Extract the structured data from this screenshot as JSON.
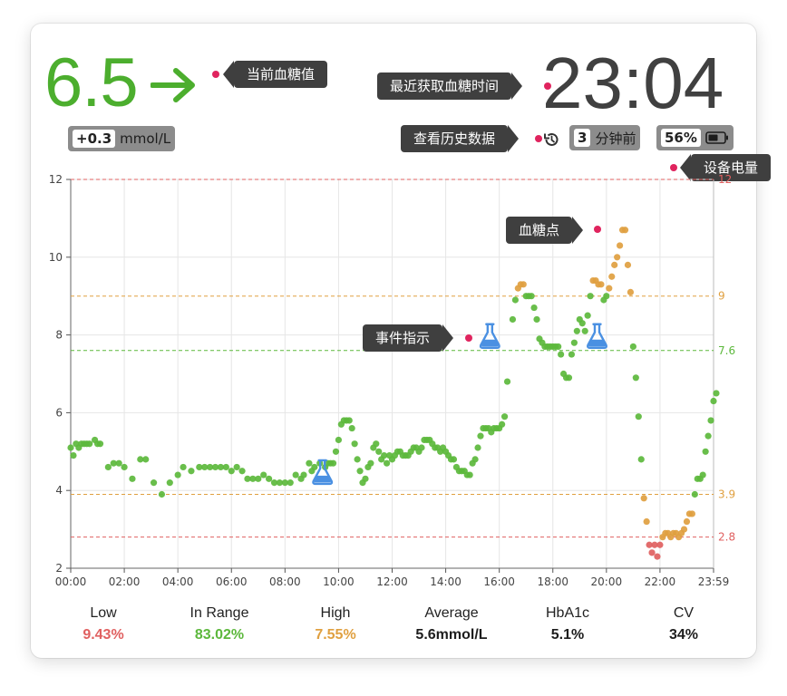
{
  "header": {
    "glucose": "6.5",
    "time": "23:04",
    "delta_value": "+0.3",
    "delta_unit": "mmol/L",
    "minutes_value": "3",
    "minutes_label": "分钟前",
    "battery_value": "56%",
    "arrow_icon": "arrow-right-icon",
    "history_icon": "history-icon",
    "battery_icon": "battery-icon",
    "glucose_color": "#4cae2e"
  },
  "callouts": {
    "current_glucose": "当前血糖值",
    "latest_time": "最近获取血糖时间",
    "history": "查看历史数据",
    "battery": "设备电量",
    "glucose_point": "血糖点",
    "event": "事件指示"
  },
  "chart_data": {
    "type": "scatter",
    "x_tick_labels": [
      "00:00",
      "02:00",
      "04:00",
      "06:00",
      "08:00",
      "10:00",
      "12:00",
      "14:00",
      "16:00",
      "18:00",
      "20:00",
      "22:00",
      "23:59"
    ],
    "y_tick_labels": [
      "2",
      "4",
      "6",
      "8",
      "10",
      "12"
    ],
    "ylim": [
      2,
      12
    ],
    "xlim_hours": [
      0,
      24
    ],
    "grid": true,
    "thresholds": [
      {
        "value": 12,
        "label": "12",
        "color": "#e06060"
      },
      {
        "value": 9,
        "label": "9",
        "color": "#e0a040"
      },
      {
        "value": 7.6,
        "label": "7.6",
        "color": "#5cb83c"
      },
      {
        "value": 3.9,
        "label": "3.9",
        "color": "#e0a040"
      },
      {
        "value": 2.8,
        "label": "2.8",
        "color": "#e06060"
      }
    ],
    "colors": {
      "low": "#e06060",
      "in_range": "#5cb83c",
      "high": "#e0a040",
      "event": "#4a90e2"
    },
    "events": [
      {
        "x": 9.4,
        "y": 4.45
      },
      {
        "x": 15.65,
        "y": 7.95
      },
      {
        "x": 19.65,
        "y": 7.95
      }
    ],
    "points": [
      [
        0.0,
        5.1
      ],
      [
        0.1,
        4.9
      ],
      [
        0.2,
        5.2
      ],
      [
        0.3,
        5.1
      ],
      [
        0.4,
        5.2
      ],
      [
        0.5,
        5.2
      ],
      [
        0.6,
        5.2
      ],
      [
        0.7,
        5.2
      ],
      [
        0.9,
        5.3
      ],
      [
        1.0,
        5.2
      ],
      [
        1.1,
        5.2
      ],
      [
        1.4,
        4.6
      ],
      [
        1.6,
        4.7
      ],
      [
        1.8,
        4.7
      ],
      [
        2.0,
        4.6
      ],
      [
        2.3,
        4.3
      ],
      [
        2.6,
        4.8
      ],
      [
        2.8,
        4.8
      ],
      [
        3.1,
        4.2
      ],
      [
        3.4,
        3.9
      ],
      [
        3.7,
        4.2
      ],
      [
        4.0,
        4.4
      ],
      [
        4.2,
        4.6
      ],
      [
        4.5,
        4.5
      ],
      [
        4.8,
        4.6
      ],
      [
        5.0,
        4.6
      ],
      [
        5.2,
        4.6
      ],
      [
        5.4,
        4.6
      ],
      [
        5.6,
        4.6
      ],
      [
        5.8,
        4.6
      ],
      [
        6.0,
        4.5
      ],
      [
        6.2,
        4.6
      ],
      [
        6.4,
        4.5
      ],
      [
        6.6,
        4.3
      ],
      [
        6.8,
        4.3
      ],
      [
        7.0,
        4.3
      ],
      [
        7.2,
        4.4
      ],
      [
        7.4,
        4.3
      ],
      [
        7.6,
        4.2
      ],
      [
        7.8,
        4.2
      ],
      [
        8.0,
        4.2
      ],
      [
        8.2,
        4.2
      ],
      [
        8.4,
        4.4
      ],
      [
        8.6,
        4.3
      ],
      [
        8.7,
        4.4
      ],
      [
        8.9,
        4.7
      ],
      [
        9.0,
        4.5
      ],
      [
        9.1,
        4.6
      ],
      [
        9.3,
        4.7
      ],
      [
        9.5,
        4.6
      ],
      [
        9.6,
        4.7
      ],
      [
        9.7,
        4.7
      ],
      [
        9.8,
        4.7
      ],
      [
        9.9,
        5.0
      ],
      [
        10.0,
        5.3
      ],
      [
        10.1,
        5.7
      ],
      [
        10.2,
        5.8
      ],
      [
        10.3,
        5.8
      ],
      [
        10.4,
        5.8
      ],
      [
        10.5,
        5.6
      ],
      [
        10.6,
        5.2
      ],
      [
        10.7,
        4.8
      ],
      [
        10.8,
        4.5
      ],
      [
        10.9,
        4.2
      ],
      [
        11.0,
        4.3
      ],
      [
        11.1,
        4.6
      ],
      [
        11.2,
        4.7
      ],
      [
        11.3,
        5.1
      ],
      [
        11.4,
        5.2
      ],
      [
        11.5,
        5.0
      ],
      [
        11.6,
        4.8
      ],
      [
        11.7,
        4.9
      ],
      [
        11.8,
        4.7
      ],
      [
        11.9,
        4.9
      ],
      [
        12.0,
        4.8
      ],
      [
        12.1,
        4.9
      ],
      [
        12.2,
        5.0
      ],
      [
        12.3,
        5.0
      ],
      [
        12.4,
        4.9
      ],
      [
        12.5,
        4.9
      ],
      [
        12.6,
        4.9
      ],
      [
        12.7,
        5.0
      ],
      [
        12.8,
        5.1
      ],
      [
        12.9,
        5.1
      ],
      [
        13.0,
        5.0
      ],
      [
        13.1,
        5.1
      ],
      [
        13.2,
        5.3
      ],
      [
        13.3,
        5.3
      ],
      [
        13.4,
        5.3
      ],
      [
        13.5,
        5.2
      ],
      [
        13.6,
        5.1
      ],
      [
        13.7,
        5.1
      ],
      [
        13.8,
        5.0
      ],
      [
        13.9,
        5.1
      ],
      [
        14.0,
        5.0
      ],
      [
        14.1,
        4.9
      ],
      [
        14.2,
        4.8
      ],
      [
        14.3,
        4.8
      ],
      [
        14.4,
        4.6
      ],
      [
        14.5,
        4.5
      ],
      [
        14.6,
        4.5
      ],
      [
        14.7,
        4.5
      ],
      [
        14.8,
        4.4
      ],
      [
        14.9,
        4.4
      ],
      [
        15.0,
        4.7
      ],
      [
        15.1,
        4.8
      ],
      [
        15.2,
        5.1
      ],
      [
        15.3,
        5.4
      ],
      [
        15.4,
        5.6
      ],
      [
        15.5,
        5.6
      ],
      [
        15.6,
        5.6
      ],
      [
        15.7,
        5.5
      ],
      [
        15.8,
        5.6
      ],
      [
        15.9,
        5.6
      ],
      [
        16.0,
        5.6
      ],
      [
        16.1,
        5.7
      ],
      [
        16.2,
        5.9
      ],
      [
        16.3,
        6.8
      ],
      [
        16.5,
        8.4
      ],
      [
        16.6,
        8.9
      ],
      [
        16.7,
        9.2
      ],
      [
        16.8,
        9.3
      ],
      [
        16.9,
        9.3
      ],
      [
        17.0,
        9.0
      ],
      [
        17.1,
        9.0
      ],
      [
        17.2,
        9.0
      ],
      [
        17.3,
        8.7
      ],
      [
        17.4,
        8.4
      ],
      [
        17.5,
        7.9
      ],
      [
        17.6,
        7.8
      ],
      [
        17.7,
        7.7
      ],
      [
        17.8,
        7.7
      ],
      [
        17.9,
        7.7
      ],
      [
        18.0,
        7.7
      ],
      [
        18.1,
        7.7
      ],
      [
        18.2,
        7.7
      ],
      [
        18.3,
        7.5
      ],
      [
        18.4,
        7.0
      ],
      [
        18.5,
        6.9
      ],
      [
        18.6,
        6.9
      ],
      [
        18.7,
        7.5
      ],
      [
        18.8,
        7.8
      ],
      [
        18.9,
        8.1
      ],
      [
        19.0,
        8.4
      ],
      [
        19.1,
        8.3
      ],
      [
        19.2,
        8.1
      ],
      [
        19.3,
        8.5
      ],
      [
        19.4,
        9.0
      ],
      [
        19.5,
        9.4
      ],
      [
        19.6,
        9.4
      ],
      [
        19.7,
        9.3
      ],
      [
        19.8,
        9.3
      ],
      [
        19.9,
        8.9
      ],
      [
        20.0,
        9.0
      ],
      [
        20.1,
        9.2
      ],
      [
        20.2,
        9.5
      ],
      [
        20.3,
        9.8
      ],
      [
        20.4,
        10.0
      ],
      [
        20.5,
        10.3
      ],
      [
        20.6,
        10.7
      ],
      [
        20.7,
        10.7
      ],
      [
        20.8,
        9.8
      ],
      [
        20.9,
        9.1
      ],
      [
        21.0,
        7.7
      ],
      [
        21.1,
        6.9
      ],
      [
        21.2,
        5.9
      ],
      [
        21.3,
        4.8
      ],
      [
        21.4,
        3.8
      ],
      [
        21.5,
        3.2
      ],
      [
        21.6,
        2.6
      ],
      [
        21.7,
        2.4
      ],
      [
        21.8,
        2.6
      ],
      [
        21.9,
        2.3
      ],
      [
        22.0,
        2.6
      ],
      [
        22.1,
        2.8
      ],
      [
        22.2,
        2.9
      ],
      [
        22.3,
        2.9
      ],
      [
        22.4,
        2.8
      ],
      [
        22.5,
        2.9
      ],
      [
        22.6,
        2.9
      ],
      [
        22.7,
        2.8
      ],
      [
        22.8,
        2.9
      ],
      [
        22.9,
        3.0
      ],
      [
        23.0,
        3.2
      ],
      [
        23.1,
        3.4
      ],
      [
        23.2,
        3.4
      ],
      [
        23.3,
        3.9
      ],
      [
        23.4,
        4.3
      ],
      [
        23.5,
        4.3
      ],
      [
        23.6,
        4.4
      ],
      [
        23.7,
        5.0
      ],
      [
        23.8,
        5.4
      ],
      [
        23.9,
        5.8
      ],
      [
        24.0,
        6.3
      ],
      [
        24.1,
        6.5
      ]
    ]
  },
  "stats": [
    {
      "label": "Low",
      "value": "9.43%",
      "color": "#e06060"
    },
    {
      "label": "In Range",
      "value": "83.02%",
      "color": "#5cb83c"
    },
    {
      "label": "High",
      "value": "7.55%",
      "color": "#e0a040"
    },
    {
      "label": "Average",
      "value": "5.6mmol/L",
      "color": "#1d1d1d"
    },
    {
      "label": "HbA1c",
      "value": "5.1%",
      "color": "#1d1d1d"
    },
    {
      "label": "CV",
      "value": "34%",
      "color": "#1d1d1d"
    }
  ]
}
